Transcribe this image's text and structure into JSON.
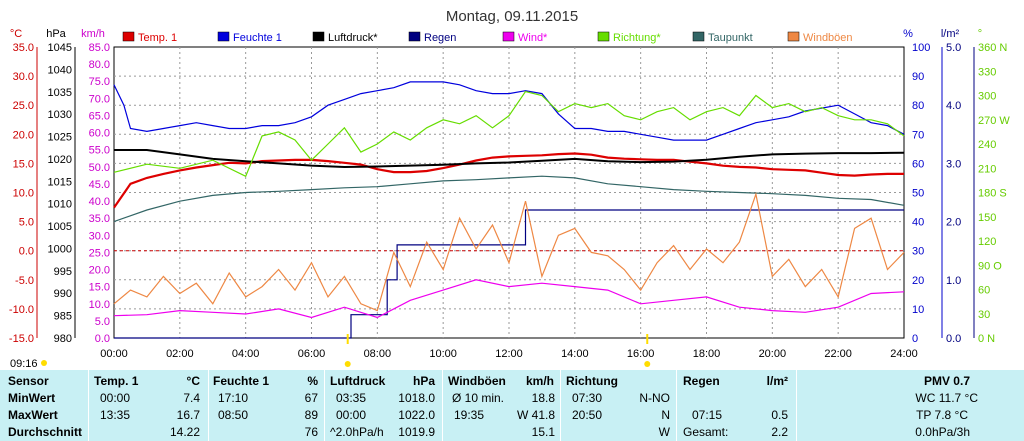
{
  "chart_data": {
    "type": "line",
    "title": "Montag, 09.11.2015",
    "x_ticks": [
      "00:00",
      "02:00",
      "04:00",
      "06:00",
      "08:00",
      "10:00",
      "12:00",
      "14:00",
      "16:00",
      "18:00",
      "20:00",
      "22:00",
      "24:00"
    ],
    "xlim": [
      0,
      24
    ],
    "grid": true,
    "legend_position": "top",
    "axes": [
      {
        "name": "temp",
        "unit": "°C",
        "color": "#cc0000",
        "side": "left",
        "ticks": [
          "35.0",
          "30.0",
          "25.0",
          "20.0",
          "15.0",
          "10.0",
          "5.0",
          "0.0",
          "-5.0",
          "-10.0",
          "-15.0"
        ],
        "ylim": [
          -15,
          35
        ]
      },
      {
        "name": "pressure",
        "unit": "hPa",
        "color": "#000000",
        "side": "left",
        "ticks": [
          "1045",
          "1040",
          "1035",
          "1030",
          "1025",
          "1020",
          "1015",
          "1010",
          "1005",
          "1000",
          "995",
          "990",
          "985",
          "980"
        ],
        "ylim": [
          980,
          1045
        ]
      },
      {
        "name": "wind",
        "unit": "km/h",
        "color": "#cc00cc",
        "side": "left",
        "ticks": [
          "85.0",
          "80.0",
          "75.0",
          "70.0",
          "65.0",
          "60.0",
          "55.0",
          "50.0",
          "45.0",
          "40.0",
          "35.0",
          "30.0",
          "25.0",
          "20.0",
          "15.0",
          "10.0",
          "5.0",
          "0.0"
        ],
        "ylim": [
          0,
          85
        ]
      },
      {
        "name": "humidity",
        "unit": "%",
        "color": "#0000cc",
        "side": "right",
        "ticks": [
          "100",
          "90",
          "80",
          "70",
          "60",
          "50",
          "40",
          "30",
          "20",
          "10",
          "0"
        ],
        "ylim": [
          0,
          100
        ]
      },
      {
        "name": "rain",
        "unit": "l/m²",
        "color": "#000080",
        "side": "right",
        "ticks": [
          "5.0",
          "4.0",
          "3.0",
          "2.0",
          "1.0",
          "0.0"
        ],
        "ylim": [
          0,
          5
        ]
      },
      {
        "name": "direction",
        "unit": "°",
        "color": "#66cc00",
        "side": "right",
        "ticks": [
          "360 N",
          "330",
          "300",
          "270 W",
          "240",
          "210",
          "180 S",
          "150",
          "120",
          "90 O",
          "60",
          "30",
          "0 N"
        ],
        "ylim": [
          0,
          360
        ]
      }
    ],
    "series": [
      {
        "name": "Temp. 1",
        "color": "#dd0000",
        "axis": "temp",
        "x": [
          0,
          0.5,
          1,
          1.5,
          2,
          2.5,
          3,
          3.5,
          4,
          4.5,
          5,
          5.5,
          6,
          6.5,
          7,
          7.5,
          8,
          8.5,
          9,
          9.5,
          10,
          10.5,
          11,
          11.5,
          12,
          12.5,
          13,
          13.5,
          14,
          14.5,
          15,
          15.5,
          16,
          16.5,
          17,
          17.5,
          18,
          18.5,
          19,
          19.5,
          20,
          20.5,
          21,
          21.5,
          22,
          22.5,
          23,
          23.5,
          24
        ],
        "values": [
          7.4,
          11.5,
          12.5,
          13.2,
          13.8,
          14.3,
          14.7,
          15.1,
          15.0,
          15.4,
          15.5,
          15.6,
          15.6,
          15.4,
          15.1,
          14.8,
          14.0,
          13.5,
          13.5,
          13.7,
          14.2,
          14.8,
          15.5,
          16.0,
          16.2,
          16.3,
          16.4,
          16.6,
          16.7,
          16.5,
          16.0,
          15.8,
          15.7,
          15.6,
          15.6,
          15.3,
          15.0,
          14.6,
          14.4,
          14.3,
          14.0,
          13.9,
          13.8,
          13.4,
          13.0,
          12.9,
          13.1,
          13.2,
          13.2
        ]
      },
      {
        "name": "Feuchte 1",
        "color": "#0000dd",
        "axis": "humidity",
        "x": [
          0,
          0.3,
          0.5,
          1,
          1.5,
          2,
          2.5,
          3,
          3.5,
          4,
          4.5,
          5,
          5.5,
          6,
          6.5,
          7,
          7.5,
          8,
          8.5,
          9,
          9.5,
          10,
          10.5,
          11,
          11.5,
          12,
          12.5,
          13,
          13.5,
          14,
          14.5,
          15,
          15.5,
          16,
          16.5,
          17,
          17.5,
          18,
          18.5,
          19,
          19.5,
          20,
          20.5,
          21,
          21.5,
          22,
          22.5,
          23,
          23.5,
          24
        ],
        "values": [
          87,
          80,
          72,
          71,
          72,
          73,
          74,
          73,
          72,
          72,
          73,
          73,
          74,
          76,
          80,
          82,
          84,
          85,
          86,
          88,
          88,
          88,
          87,
          85,
          84,
          84,
          85,
          84,
          77,
          72,
          72,
          71,
          71,
          70,
          69,
          68,
          68,
          68,
          70,
          72,
          74,
          75,
          76,
          78,
          79,
          80,
          77,
          74,
          73,
          70
        ]
      },
      {
        "name": "Luftdruck*",
        "color": "#000000",
        "axis": "pressure",
        "x": [
          0,
          1,
          2,
          3,
          4,
          5,
          6,
          7,
          8,
          9,
          10,
          11,
          12,
          13,
          14,
          15,
          16,
          17,
          18,
          19,
          20,
          21,
          22,
          23,
          24
        ],
        "values": [
          1022,
          1022,
          1021,
          1020,
          1019.5,
          1019,
          1018.5,
          1018.2,
          1018.3,
          1018.5,
          1018.7,
          1019,
          1019.2,
          1019.6,
          1020,
          1019.5,
          1019.3,
          1019.4,
          1019.8,
          1020.5,
          1021,
          1021.2,
          1021.3,
          1021.3,
          1021.4
        ]
      },
      {
        "name": "Regen",
        "color": "#000080",
        "axis": "rain",
        "x": [
          0,
          7.2,
          7.2,
          8.3,
          8.3,
          8.6,
          8.6,
          12.5,
          12.5,
          24
        ],
        "values": [
          0,
          0,
          0.4,
          0.4,
          1.0,
          1.0,
          1.6,
          1.6,
          2.2,
          2.2
        ]
      },
      {
        "name": "Wind*",
        "color": "#ee00ee",
        "axis": "wind",
        "x": [
          0,
          1,
          2,
          3,
          4,
          5,
          6,
          7,
          8,
          9,
          10,
          11,
          12,
          13,
          14,
          15,
          16,
          17,
          18,
          19,
          20,
          21,
          22,
          23,
          24
        ],
        "values": [
          6.5,
          6.8,
          8.0,
          7.5,
          7.0,
          8.5,
          6.0,
          9.0,
          6.0,
          11.0,
          14.0,
          17.0,
          15.0,
          16.0,
          15.0,
          14.0,
          10.0,
          11.0,
          12.0,
          9.0,
          8.0,
          7.5,
          9.0,
          13.0,
          13.5
        ]
      },
      {
        "name": "Richtung*",
        "color": "#66dd00",
        "axis": "direction",
        "x": [
          0,
          1,
          2,
          3,
          4,
          4.5,
          5,
          5.5,
          6,
          6.5,
          7,
          7.5,
          8,
          8.5,
          9,
          9.5,
          10,
          10.5,
          11,
          11.5,
          12,
          12.5,
          13,
          13.5,
          14,
          14.5,
          15,
          15.5,
          16,
          16.5,
          17,
          17.5,
          18,
          18.5,
          19,
          19.5,
          20,
          20.5,
          21,
          21.5,
          22,
          22.5,
          23,
          23.5,
          24
        ],
        "values": [
          205,
          215,
          210,
          220,
          200,
          250,
          255,
          245,
          220,
          240,
          260,
          230,
          240,
          255,
          245,
          260,
          270,
          265,
          275,
          260,
          275,
          305,
          300,
          280,
          290,
          285,
          290,
          275,
          270,
          280,
          285,
          270,
          280,
          285,
          275,
          300,
          285,
          290,
          280,
          285,
          275,
          270,
          270,
          265,
          250
        ]
      },
      {
        "name": "Taupunkt",
        "color": "#336666",
        "axis": "temp",
        "x": [
          0,
          1,
          2,
          3,
          4,
          5,
          6,
          7,
          8,
          9,
          10,
          11,
          12,
          13,
          14,
          15,
          16,
          17,
          18,
          19,
          20,
          21,
          22,
          23,
          24
        ],
        "values": [
          5.0,
          7.0,
          8.5,
          9.5,
          10.0,
          10.2,
          10.5,
          10.8,
          11.0,
          11.5,
          12.0,
          12.2,
          12.5,
          12.8,
          12.5,
          11.5,
          11.0,
          10.5,
          10.2,
          10.0,
          9.8,
          9.5,
          9.0,
          8.8,
          7.8
        ]
      },
      {
        "name": "Windböen",
        "color": "#ee8844",
        "axis": "wind",
        "x": [
          0,
          0.5,
          1,
          1.5,
          2,
          2.5,
          3,
          3.5,
          4,
          4.5,
          5,
          5.5,
          6,
          6.5,
          7,
          7.5,
          8,
          8.5,
          9,
          9.5,
          10,
          10.5,
          11,
          11.5,
          12,
          12.5,
          13,
          13.5,
          14,
          14.5,
          15,
          15.5,
          16,
          16.5,
          17,
          17.5,
          18,
          18.5,
          19,
          19.5,
          20,
          20.5,
          21,
          21.5,
          22,
          22.5,
          23,
          23.5,
          24
        ],
        "values": [
          10,
          14,
          12,
          18,
          13,
          16,
          10,
          19,
          12,
          15,
          20,
          14,
          22,
          12,
          18,
          10,
          8,
          25,
          15,
          28,
          20,
          35,
          26,
          33,
          22,
          40,
          18,
          30,
          32,
          25,
          24,
          20,
          14,
          22,
          27,
          20,
          26,
          22,
          28,
          42,
          18,
          23,
          15,
          20,
          12,
          32,
          35,
          20,
          25
        ]
      }
    ],
    "markers": {
      "time_label": "09:16",
      "symbols": [
        {
          "x": 7.1,
          "color": "#ffdd00"
        },
        {
          "x": 16.2,
          "color": "#ffdd00"
        }
      ]
    }
  },
  "stats": {
    "header": {
      "sensor": "Sensor",
      "temp_label": "Temp. 1",
      "temp_unit": "°C",
      "hum_label": "Feuchte 1",
      "hum_unit": "%",
      "press_label": "Luftdruck",
      "press_unit": "hPa",
      "gust_label": "Windböen",
      "gust_unit": "km/h",
      "dir_label": "Richtung",
      "rain_label": "Regen",
      "rain_unit": "l/m²",
      "pmv_label": "PMV 0.7"
    },
    "min": {
      "label": "MinWert",
      "temp_time": "00:00",
      "temp_val": "7.4",
      "hum_time": "17:10",
      "hum_val": "67",
      "press_time": "03:35",
      "press_val": "1018.0",
      "gust_time": "Ø 10 min.",
      "gust_val": "18.8",
      "dir_time": "07:30",
      "dir_val": "N-NO",
      "rain_time": "",
      "rain_val": "",
      "pmv_line": "WC 11.7 °C"
    },
    "max": {
      "label": "MaxWert",
      "temp_time": "13:35",
      "temp_val": "16.7",
      "hum_time": "08:50",
      "hum_val": "89",
      "press_time": "00:00",
      "press_val": "1022.0",
      "gust_time": "19:35",
      "gust_val": "W 41.8",
      "dir_time": "20:50",
      "dir_val": "N",
      "rain_time": "07:15",
      "rain_val": "0.5",
      "pmv_line": "TP 7.8 °C"
    },
    "avg": {
      "label": "Durchschnitt",
      "temp_time": "",
      "temp_val": "14.22",
      "hum_time": "",
      "hum_val": "76",
      "press_time": "^2.0hPa/h",
      "press_val": "1019.9",
      "gust_time": "",
      "gust_val": "15.1",
      "dir_time": "",
      "dir_val": "W",
      "rain_time": "Gesamt:",
      "rain_val": "2.2",
      "pmv_line": "0.0hPa/3h"
    }
  }
}
